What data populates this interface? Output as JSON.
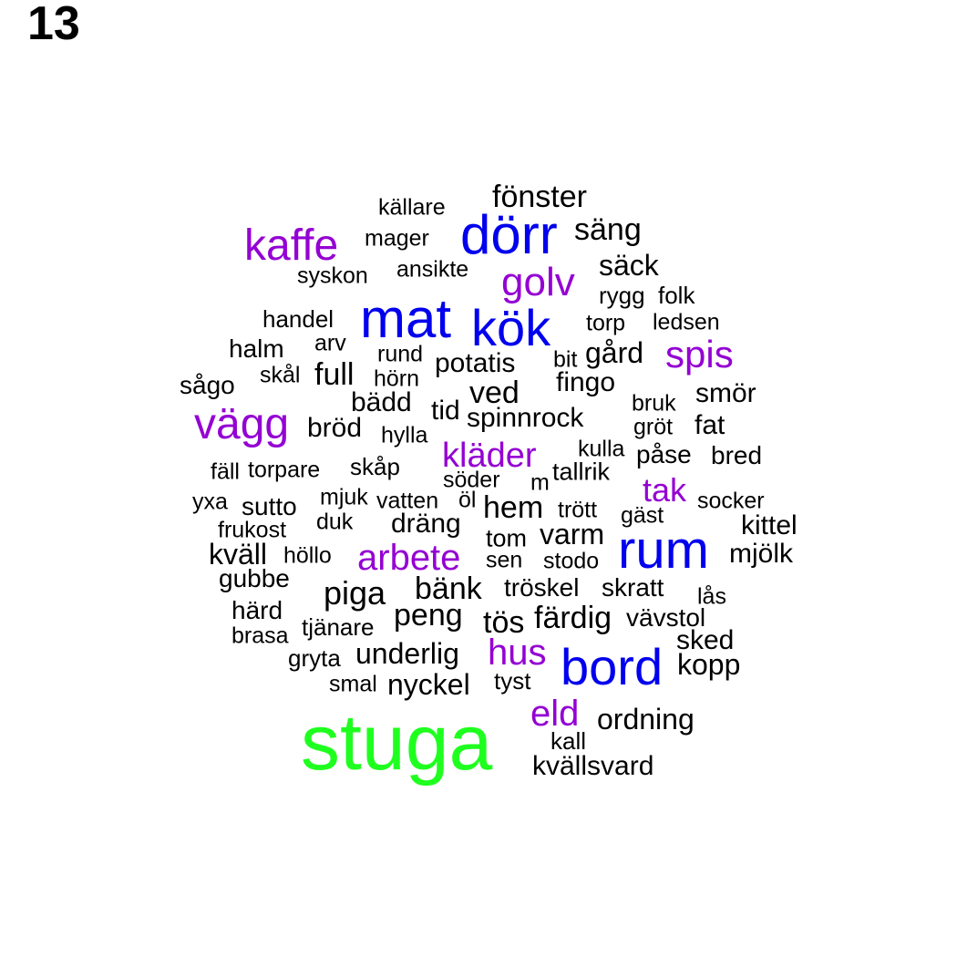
{
  "panel_number": "13",
  "colors": {
    "level_1": "#000000",
    "level_2": "#9400d3",
    "level_3": "#0000ee",
    "level_4": "#1fff1f"
  },
  "words": [
    {
      "text": "stuga",
      "level": 4
    },
    {
      "text": "dörr",
      "level": 3
    },
    {
      "text": "mat",
      "level": 3
    },
    {
      "text": "kök",
      "level": 3
    },
    {
      "text": "rum",
      "level": 3
    },
    {
      "text": "bord",
      "level": 3
    },
    {
      "text": "kaffe",
      "level": 2
    },
    {
      "text": "golv",
      "level": 2
    },
    {
      "text": "spis",
      "level": 2
    },
    {
      "text": "vägg",
      "level": 2
    },
    {
      "text": "kläder",
      "level": 2
    },
    {
      "text": "tak",
      "level": 2
    },
    {
      "text": "arbete",
      "level": 2
    },
    {
      "text": "hus",
      "level": 2
    },
    {
      "text": "eld",
      "level": 2
    },
    {
      "text": "fönster",
      "level": 1
    },
    {
      "text": "källare",
      "level": 1
    },
    {
      "text": "säng",
      "level": 1
    },
    {
      "text": "mager",
      "level": 1
    },
    {
      "text": "säck",
      "level": 1
    },
    {
      "text": "syskon",
      "level": 1
    },
    {
      "text": "ansikte",
      "level": 1
    },
    {
      "text": "rygg",
      "level": 1
    },
    {
      "text": "folk",
      "level": 1
    },
    {
      "text": "handel",
      "level": 1
    },
    {
      "text": "torp",
      "level": 1
    },
    {
      "text": "ledsen",
      "level": 1
    },
    {
      "text": "halm",
      "level": 1
    },
    {
      "text": "arv",
      "level": 1
    },
    {
      "text": "rund",
      "level": 1
    },
    {
      "text": "gård",
      "level": 1
    },
    {
      "text": "bit",
      "level": 1
    },
    {
      "text": "potatis",
      "level": 1
    },
    {
      "text": "skål",
      "level": 1
    },
    {
      "text": "full",
      "level": 1
    },
    {
      "text": "hörn",
      "level": 1
    },
    {
      "text": "sågo",
      "level": 1
    },
    {
      "text": "fingo",
      "level": 1
    },
    {
      "text": "ved",
      "level": 1
    },
    {
      "text": "smör",
      "level": 1
    },
    {
      "text": "bädd",
      "level": 1
    },
    {
      "text": "bruk",
      "level": 1
    },
    {
      "text": "tid",
      "level": 1
    },
    {
      "text": "spinnrock",
      "level": 1
    },
    {
      "text": "gröt",
      "level": 1
    },
    {
      "text": "fat",
      "level": 1
    },
    {
      "text": "bröd",
      "level": 1
    },
    {
      "text": "hylla",
      "level": 1
    },
    {
      "text": "kulla",
      "level": 1
    },
    {
      "text": "påse",
      "level": 1
    },
    {
      "text": "bred",
      "level": 1
    },
    {
      "text": "fäll",
      "level": 1
    },
    {
      "text": "torpare",
      "level": 1
    },
    {
      "text": "skåp",
      "level": 1
    },
    {
      "text": "tallrik",
      "level": 1
    },
    {
      "text": "söder",
      "level": 1
    },
    {
      "text": "m",
      "level": 1
    },
    {
      "text": "yxa",
      "level": 1
    },
    {
      "text": "sutto",
      "level": 1
    },
    {
      "text": "mjuk",
      "level": 1
    },
    {
      "text": "vatten",
      "level": 1
    },
    {
      "text": "öl",
      "level": 1
    },
    {
      "text": "hem",
      "level": 1
    },
    {
      "text": "trött",
      "level": 1
    },
    {
      "text": "socker",
      "level": 1
    },
    {
      "text": "gäst",
      "level": 1
    },
    {
      "text": "frukost",
      "level": 1
    },
    {
      "text": "duk",
      "level": 1
    },
    {
      "text": "dräng",
      "level": 1
    },
    {
      "text": "tom",
      "level": 1
    },
    {
      "text": "varm",
      "level": 1
    },
    {
      "text": "kittel",
      "level": 1
    },
    {
      "text": "kväll",
      "level": 1
    },
    {
      "text": "höllo",
      "level": 1
    },
    {
      "text": "sen",
      "level": 1
    },
    {
      "text": "stodo",
      "level": 1
    },
    {
      "text": "mjölk",
      "level": 1
    },
    {
      "text": "gubbe",
      "level": 1
    },
    {
      "text": "piga",
      "level": 1
    },
    {
      "text": "bänk",
      "level": 1
    },
    {
      "text": "tröskel",
      "level": 1
    },
    {
      "text": "skratt",
      "level": 1
    },
    {
      "text": "lås",
      "level": 1
    },
    {
      "text": "härd",
      "level": 1
    },
    {
      "text": "peng",
      "level": 1
    },
    {
      "text": "tös",
      "level": 1
    },
    {
      "text": "färdig",
      "level": 1
    },
    {
      "text": "vävstol",
      "level": 1
    },
    {
      "text": "brasa",
      "level": 1
    },
    {
      "text": "tjänare",
      "level": 1
    },
    {
      "text": "sked",
      "level": 1
    },
    {
      "text": "gryta",
      "level": 1
    },
    {
      "text": "underlig",
      "level": 1
    },
    {
      "text": "kopp",
      "level": 1
    },
    {
      "text": "smal",
      "level": 1
    },
    {
      "text": "nyckel",
      "level": 1
    },
    {
      "text": "tyst",
      "level": 1
    },
    {
      "text": "ordning",
      "level": 1
    },
    {
      "text": "kall",
      "level": 1
    },
    {
      "text": "kvällsvard",
      "level": 1
    }
  ]
}
